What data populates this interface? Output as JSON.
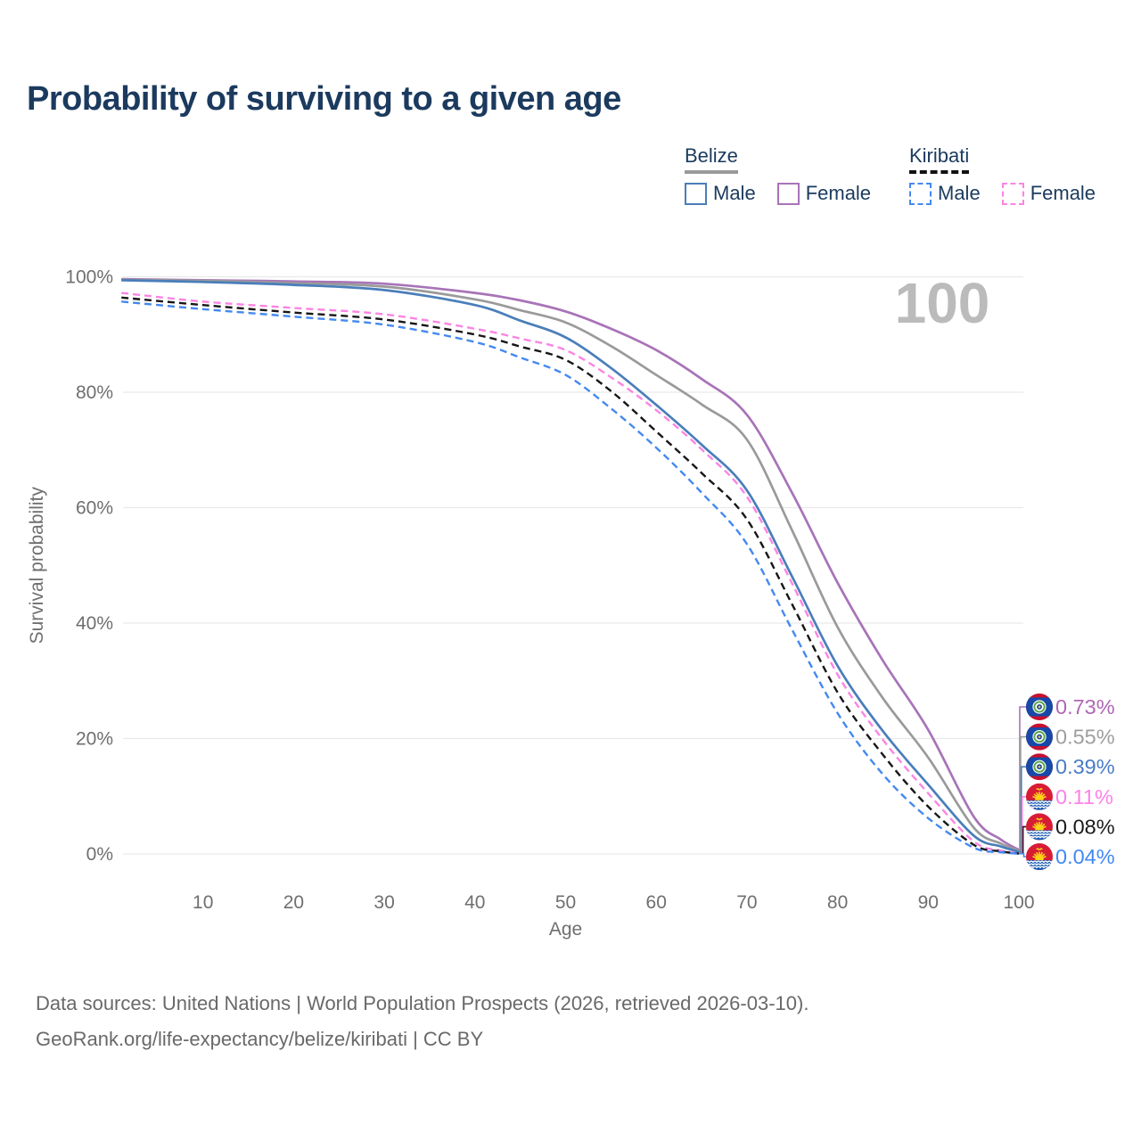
{
  "title": "Probability of surviving to a given age",
  "legend": {
    "groups": [
      {
        "label": "Belize",
        "line_style": "solid",
        "line_color": "#9a9a9a",
        "items": [
          {
            "label": "Male",
            "color": "#4a7eba",
            "style": "solid"
          },
          {
            "label": "Female",
            "color": "#a873b8",
            "style": "solid"
          }
        ]
      },
      {
        "label": "Kiribati",
        "line_style": "dashed",
        "line_color": "#111111",
        "items": [
          {
            "label": "Male",
            "color": "#4489f0",
            "style": "dashed"
          },
          {
            "label": "Female",
            "color": "#fc84e4",
            "style": "dashed"
          }
        ]
      }
    ]
  },
  "chart_data": {
    "type": "line",
    "title": "Probability of surviving to a given age",
    "xlabel": "Age",
    "ylabel": "Survival probability",
    "xlim": [
      0,
      100
    ],
    "ylim": [
      0,
      100
    ],
    "x_ticks": [
      10,
      20,
      30,
      40,
      50,
      60,
      70,
      80,
      90,
      100
    ],
    "y_ticks": [
      0,
      20,
      40,
      60,
      80,
      100
    ],
    "y_tick_suffix": "%",
    "grid": "horizontal",
    "legend_position": "top-right",
    "hover_age_indicator": "100",
    "x": [
      1,
      10,
      20,
      30,
      40,
      45,
      50,
      55,
      60,
      65,
      70,
      75,
      80,
      85,
      90,
      95,
      98,
      100
    ],
    "series": [
      {
        "name": "Belize Female",
        "country": "Belize",
        "sex": "Female",
        "flag": "belize",
        "color": "#a873b8",
        "label_color": "#b066b6",
        "dash": false,
        "end_label": "0.73%",
        "values": [
          99.6,
          99.4,
          99.2,
          98.8,
          97.2,
          95.9,
          94.0,
          91.0,
          87.3,
          82.3,
          76.1,
          62.5,
          47.0,
          33.5,
          21.5,
          6.5,
          2.5,
          0.73
        ]
      },
      {
        "name": "Belize",
        "country": "Belize",
        "sex": "Both",
        "flag": "belize",
        "color": "#9a9a9a",
        "label_color": "#9e9e9e",
        "dash": false,
        "end_label": "0.55%",
        "values": [
          99.5,
          99.3,
          98.9,
          98.3,
          96.1,
          94.2,
          92.1,
          88.0,
          83.0,
          77.9,
          71.8,
          56.0,
          39.3,
          27.0,
          16.7,
          4.6,
          1.8,
          0.55
        ]
      },
      {
        "name": "Belize Male",
        "country": "Belize",
        "sex": "Male",
        "flag": "belize",
        "color": "#4a7eba",
        "label_color": "#4a7cc8",
        "dash": false,
        "end_label": "0.39%",
        "values": [
          99.4,
          99.1,
          98.6,
          97.7,
          95.1,
          92.4,
          89.5,
          84.2,
          77.8,
          70.9,
          63.0,
          48.0,
          32.6,
          21.3,
          12.0,
          3.2,
          1.3,
          0.39
        ]
      },
      {
        "name": "Kiribati Female",
        "country": "Kiribati",
        "sex": "Female",
        "flag": "kiribati",
        "color": "#fc84e4",
        "label_color": "#ff80e8",
        "dash": true,
        "end_label": "0.11%",
        "values": [
          97.2,
          95.7,
          94.6,
          93.5,
          91.0,
          89.3,
          87.3,
          82.6,
          76.9,
          70.1,
          61.9,
          46.8,
          31.1,
          19.8,
          10.5,
          2.2,
          0.6,
          0.11
        ]
      },
      {
        "name": "Kiribati",
        "country": "Kiribati",
        "sex": "Both",
        "flag": "kiribati",
        "color": "#161616",
        "label_color": "#1a1a1a",
        "dash": true,
        "end_label": "0.08%",
        "values": [
          96.4,
          95.1,
          93.8,
          92.6,
          90.0,
          87.9,
          85.6,
          80.2,
          73.2,
          66.0,
          58.0,
          43.2,
          28.0,
          17.2,
          8.2,
          1.6,
          0.45,
          0.08
        ]
      },
      {
        "name": "Kiribati Male",
        "country": "Kiribati",
        "sex": "Male",
        "flag": "kiribati",
        "color": "#4489f0",
        "label_color": "#4189f5",
        "dash": true,
        "end_label": "0.04%",
        "values": [
          95.7,
          94.4,
          93.1,
          91.7,
          88.7,
          86.0,
          83.0,
          77.2,
          70.4,
          62.6,
          53.7,
          38.8,
          24.4,
          13.8,
          6.2,
          1.1,
          0.3,
          0.04
        ]
      }
    ]
  },
  "footer": {
    "line1": "Data sources: United Nations | World Population Prospects (2026, retrieved 2026-03-10).",
    "line2": "GeoRank.org/life-expectancy/belize/kiribati | CC BY"
  },
  "colors": {
    "title_text": "#1b3a5e",
    "axis_text": "#6f6f6f",
    "gridline": "#e9e9e9",
    "hover_indicator": "#bbbbbb",
    "footer_text": "#696969"
  }
}
